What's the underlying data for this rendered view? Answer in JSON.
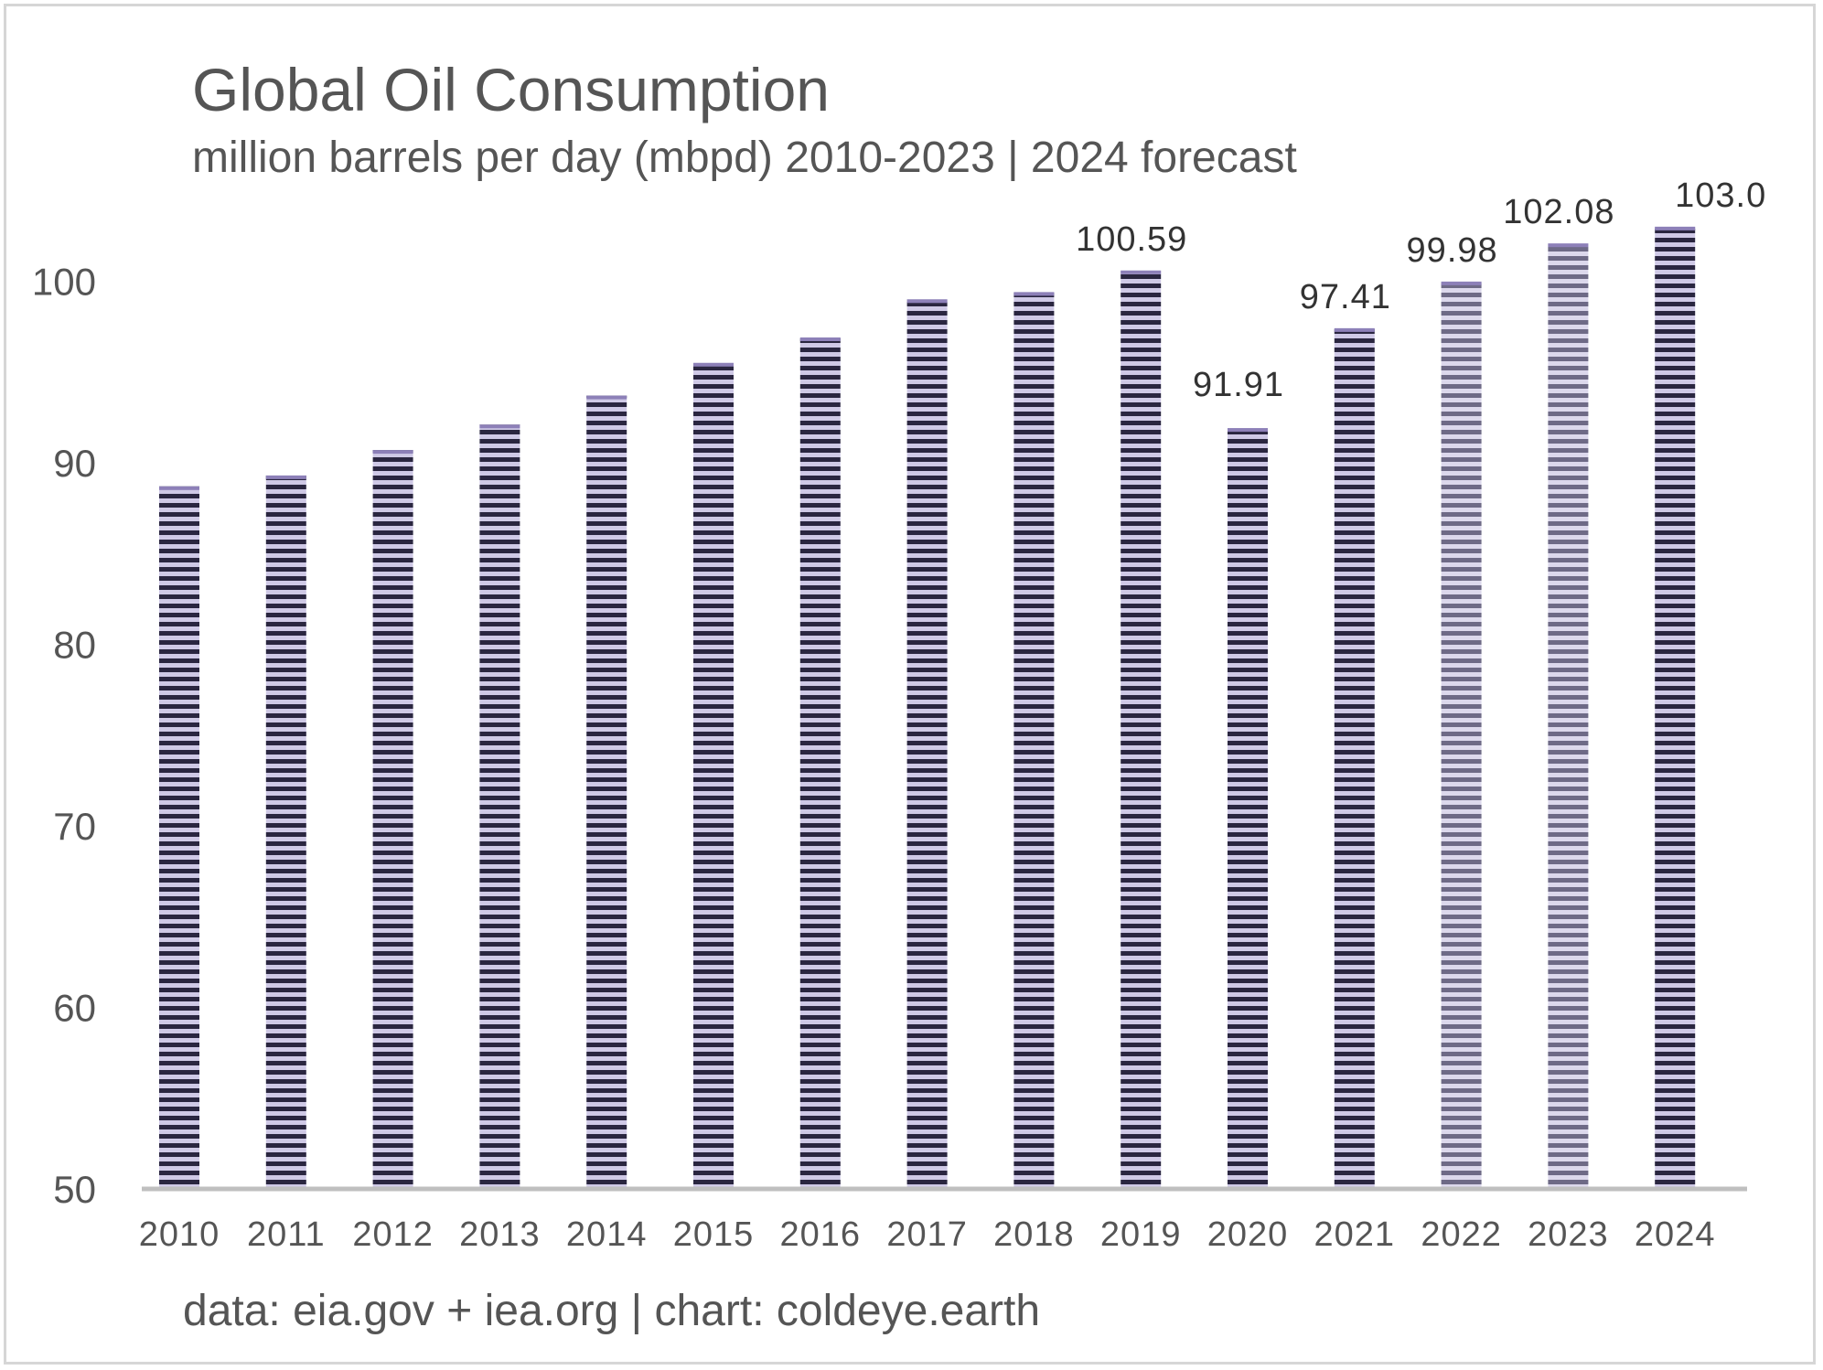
{
  "chart_data": {
    "type": "bar",
    "title": "Global Oil Consumption",
    "subtitle": "million barrels per day (mbpd) 2010-2023 | 2024 forecast",
    "source": "data: eia.gov + iea.org | chart: coldeye.earth",
    "xlabel": "",
    "ylabel": "",
    "categories": [
      "2010",
      "2011",
      "2012",
      "2013",
      "2014",
      "2015",
      "2016",
      "2017",
      "2018",
      "2019",
      "2020",
      "2021",
      "2022",
      "2023",
      "2024"
    ],
    "values": [
      88.7,
      89.3,
      90.7,
      92.1,
      93.7,
      95.5,
      96.9,
      99.0,
      99.4,
      100.59,
      91.91,
      97.41,
      99.98,
      102.08,
      103.0
    ],
    "data_labels": [
      "",
      "",
      "",
      "",
      "",
      "",
      "",
      "",
      "",
      "100.59",
      "91.91",
      "97.41",
      "99.98",
      "102.08",
      "103.0"
    ],
    "ylim": [
      50,
      103.0
    ],
    "yticks": [
      50,
      60,
      70,
      80,
      90,
      100
    ],
    "grid": false,
    "legend": "none",
    "colors": {
      "bar_dark": "#2a2640",
      "bar_stripe": "#cfc9e6",
      "bar_forecast_dark": "#6e6a86",
      "bar_top": "#8d80b8",
      "axis": "#bfbfbf",
      "text": "#555555",
      "label": "#333333"
    }
  }
}
